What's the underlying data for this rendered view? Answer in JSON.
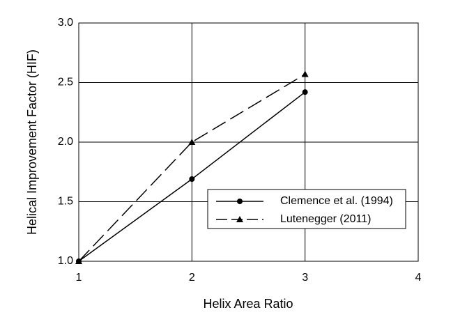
{
  "chart_data": {
    "type": "line",
    "x_label": "Helix Area Ratio",
    "y_label": "Helical Improvement Factor (HIF)",
    "x": [
      1,
      2,
      3
    ],
    "series": [
      {
        "name": "Clemence et al. (1994)",
        "color": "#000000",
        "line_style": "solid",
        "marker": "circle",
        "values": [
          1.0,
          1.69,
          2.42
        ]
      },
      {
        "name": "Lutenegger (2011)",
        "color": "#000000",
        "line_style": "dashed",
        "marker": "triangle",
        "values": [
          1.0,
          2.0,
          2.57
        ]
      }
    ],
    "xlim": [
      1,
      4
    ],
    "xticks": [
      1,
      2,
      3,
      4
    ],
    "ylim": [
      1.0,
      3.0
    ],
    "yticks": [
      {
        "value": 1.0,
        "label": "1.0"
      },
      1.5,
      {
        "value": 2.0,
        "label": "2.0"
      },
      2.5,
      {
        "value": 3.0,
        "label": "3.0"
      }
    ],
    "grid": true,
    "legend": "lower right"
  }
}
